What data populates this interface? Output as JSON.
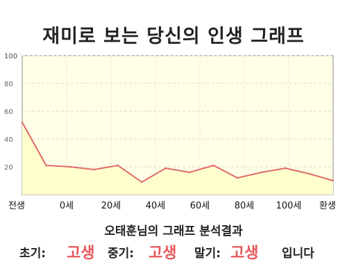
{
  "title": "재미로 보는 당신의 인생 그래프",
  "summary": "오태훈님의 그래프 분석결과",
  "result": {
    "early_label": "초기:",
    "early_value": "고생",
    "mid_label": "중기:",
    "mid_value": "고생",
    "late_label": "말기:",
    "late_value": "고생",
    "suffix": "입니다"
  },
  "colors": {
    "line": "#e06a6a",
    "fill": "#ffffcc",
    "plot_bg": "#ffffe5",
    "accent_text": "#e8575a"
  },
  "chart_data": {
    "type": "area",
    "title": "재미로 보는 당신의 인생 그래프",
    "xlabel": "",
    "ylabel": "",
    "x_labels": [
      "전생",
      "0세",
      "20세",
      "40세",
      "60세",
      "80세",
      "100세",
      "환생"
    ],
    "x": [
      0,
      1,
      2,
      3,
      4,
      5,
      6,
      7,
      8,
      9,
      10,
      11,
      12,
      13
    ],
    "series": [
      {
        "values": [
          52,
          21,
          20,
          18,
          21,
          9,
          19,
          16,
          21,
          12,
          16,
          19,
          15,
          10
        ]
      }
    ],
    "y_ticks": [
      20,
      40,
      60,
      80,
      100
    ],
    "ylim": [
      0,
      100
    ],
    "grid": true
  }
}
